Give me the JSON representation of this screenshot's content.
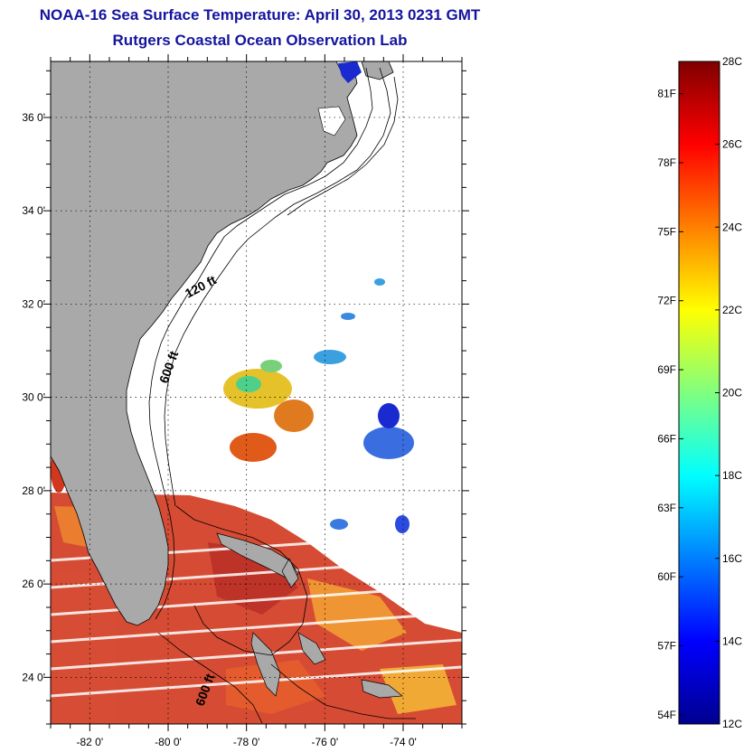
{
  "title": "NOAA-16 Sea Surface Temperature:  April 30, 2013 0231 GMT",
  "subtitle": "Rutgers Coastal Ocean Observation Lab",
  "map": {
    "lon_range": [
      -83,
      -72.5
    ],
    "lat_range": [
      23,
      37.2
    ],
    "lon_ticks": [
      {
        "value": -82,
        "label": "-82 0'"
      },
      {
        "value": -80,
        "label": "-80 0'"
      },
      {
        "value": -78,
        "label": "-78 0'"
      },
      {
        "value": -76,
        "label": "-76 0'"
      },
      {
        "value": -74,
        "label": "-74 0'"
      }
    ],
    "lat_ticks": [
      {
        "value": 24,
        "label": "24 0'"
      },
      {
        "value": 26,
        "label": "26 0'"
      },
      {
        "value": 28,
        "label": "28 0'"
      },
      {
        "value": 30,
        "label": "30 0'"
      },
      {
        "value": 32,
        "label": "32 0'"
      },
      {
        "value": 34,
        "label": "34 0'"
      },
      {
        "value": 36,
        "label": "36 0'"
      }
    ],
    "grid": "dotted",
    "land_color": "#a9a9a9",
    "isobath_labels": [
      "120 ft",
      "600 ft",
      "600 ft"
    ]
  },
  "colorbar": {
    "colormap": "jet",
    "range_c": [
      12,
      28
    ],
    "celsius_ticks": [
      {
        "value": 12,
        "label": "12C"
      },
      {
        "value": 14,
        "label": "14C"
      },
      {
        "value": 16,
        "label": "16C"
      },
      {
        "value": 18,
        "label": "18C"
      },
      {
        "value": 20,
        "label": "20C"
      },
      {
        "value": 22,
        "label": "22C"
      },
      {
        "value": 24,
        "label": "24C"
      },
      {
        "value": 26,
        "label": "26C"
      },
      {
        "value": 28,
        "label": "28C"
      }
    ],
    "fahrenheit_ticks": [
      {
        "value": 54,
        "label": "54F"
      },
      {
        "value": 57,
        "label": "57F"
      },
      {
        "value": 60,
        "label": "60F"
      },
      {
        "value": 63,
        "label": "63F"
      },
      {
        "value": 66,
        "label": "66F"
      },
      {
        "value": 69,
        "label": "69F"
      },
      {
        "value": 72,
        "label": "72F"
      },
      {
        "value": 75,
        "label": "75F"
      },
      {
        "value": 78,
        "label": "78F"
      },
      {
        "value": 81,
        "label": "81F"
      }
    ]
  }
}
